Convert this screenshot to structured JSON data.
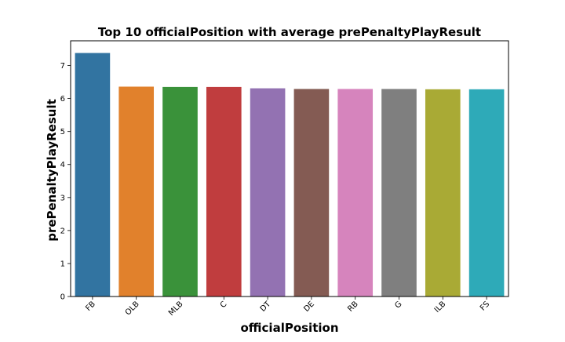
{
  "chart_data": {
    "type": "bar",
    "title": "Top 10 officialPosition with average prePenaltyPlayResult",
    "xlabel": "officialPosition",
    "ylabel": "prePenaltyPlayResult",
    "categories": [
      "FB",
      "OLB",
      "MLB",
      "C",
      "DT",
      "DE",
      "RB",
      "G",
      "ILB",
      "FS"
    ],
    "values": [
      7.38,
      6.36,
      6.35,
      6.35,
      6.31,
      6.29,
      6.29,
      6.29,
      6.28,
      6.28
    ],
    "colors": [
      "#3274a1",
      "#e1812c",
      "#3a923a",
      "#c03d3e",
      "#9372b2",
      "#845b53",
      "#d684bd",
      "#7f7f7f",
      "#a9aa35",
      "#2eaab8"
    ],
    "ylim": [
      0,
      7.75
    ],
    "yticks": [
      0,
      1,
      2,
      3,
      4,
      5,
      6,
      7
    ],
    "grid": false,
    "legend": "none"
  }
}
